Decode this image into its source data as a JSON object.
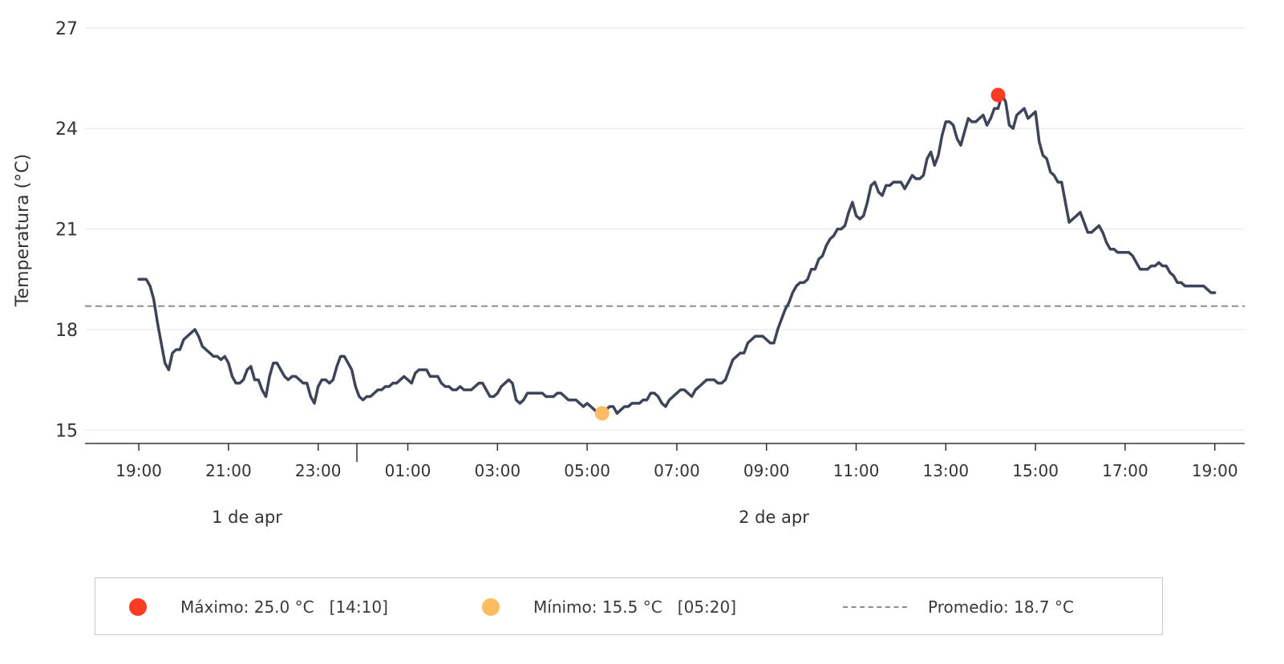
{
  "chart_data": {
    "type": "line",
    "title": "",
    "xlabel": "",
    "ylabel": "Temperatura (°C)",
    "ylim": [
      14.6,
      27.5
    ],
    "yticks": [
      15,
      18,
      21,
      24,
      27
    ],
    "xlim": [
      "2024-04-01T17:48",
      "2024-04-02T19:40"
    ],
    "xticks": [
      "19:00",
      "21:00",
      "23:00",
      "01:00",
      "03:00",
      "05:00",
      "07:00",
      "09:00",
      "11:00",
      "13:00",
      "15:00",
      "17:00",
      "19:00"
    ],
    "day_labels": [
      "1 de apr",
      "2 de apr"
    ],
    "grid": "horizontal",
    "colors": {
      "line": "#3f4458",
      "max": "#ff3b24",
      "min": "#fbbd5f",
      "mean": "#8e8e8e",
      "grid": "#eeeeee"
    },
    "x": [
      "2024-04-01T19:00",
      "2024-04-01T19:05",
      "2024-04-01T19:10",
      "2024-04-01T19:15",
      "2024-04-01T19:20",
      "2024-04-01T19:25",
      "2024-04-01T19:30",
      "2024-04-01T19:35",
      "2024-04-01T19:40",
      "2024-04-01T19:45",
      "2024-04-01T19:50",
      "2024-04-01T19:55",
      "2024-04-01T20:00",
      "2024-04-01T20:05",
      "2024-04-01T20:10",
      "2024-04-01T20:15",
      "2024-04-01T20:20",
      "2024-04-01T20:25",
      "2024-04-01T20:30",
      "2024-04-01T20:35",
      "2024-04-01T20:40",
      "2024-04-01T20:45",
      "2024-04-01T20:50",
      "2024-04-01T20:55",
      "2024-04-01T21:00",
      "2024-04-01T21:05",
      "2024-04-01T21:10",
      "2024-04-01T21:15",
      "2024-04-01T21:20",
      "2024-04-01T21:25",
      "2024-04-01T21:30",
      "2024-04-01T21:35",
      "2024-04-01T21:40",
      "2024-04-01T21:45",
      "2024-04-01T21:50",
      "2024-04-01T21:55",
      "2024-04-01T22:00",
      "2024-04-01T22:05",
      "2024-04-01T22:10",
      "2024-04-01T22:15",
      "2024-04-01T22:20",
      "2024-04-01T22:25",
      "2024-04-01T22:30",
      "2024-04-01T22:35",
      "2024-04-01T22:40",
      "2024-04-01T22:45",
      "2024-04-01T22:50",
      "2024-04-01T22:55",
      "2024-04-01T23:00",
      "2024-04-01T23:05",
      "2024-04-01T23:10",
      "2024-04-01T23:15",
      "2024-04-01T23:20",
      "2024-04-01T23:25",
      "2024-04-01T23:30",
      "2024-04-01T23:35",
      "2024-04-01T23:40",
      "2024-04-01T23:45",
      "2024-04-01T23:50",
      "2024-04-01T23:55",
      "2024-04-02T00:00",
      "2024-04-02T00:05",
      "2024-04-02T00:10",
      "2024-04-02T00:15",
      "2024-04-02T00:20",
      "2024-04-02T00:25",
      "2024-04-02T00:30",
      "2024-04-02T00:35",
      "2024-04-02T00:40",
      "2024-04-02T00:45",
      "2024-04-02T00:50",
      "2024-04-02T00:55",
      "2024-04-02T01:00",
      "2024-04-02T01:05",
      "2024-04-02T01:10",
      "2024-04-02T01:15",
      "2024-04-02T01:20",
      "2024-04-02T01:25",
      "2024-04-02T01:30",
      "2024-04-02T01:35",
      "2024-04-02T01:40",
      "2024-04-02T01:45",
      "2024-04-02T01:50",
      "2024-04-02T01:55",
      "2024-04-02T02:00",
      "2024-04-02T02:05",
      "2024-04-02T02:10",
      "2024-04-02T02:15",
      "2024-04-02T02:20",
      "2024-04-02T02:25",
      "2024-04-02T02:30",
      "2024-04-02T02:35",
      "2024-04-02T02:40",
      "2024-04-02T02:45",
      "2024-04-02T02:50",
      "2024-04-02T02:55",
      "2024-04-02T03:00",
      "2024-04-02T03:05",
      "2024-04-02T03:10",
      "2024-04-02T03:15",
      "2024-04-02T03:20",
      "2024-04-02T03:25",
      "2024-04-02T03:30",
      "2024-04-02T03:35",
      "2024-04-02T03:40",
      "2024-04-02T03:45",
      "2024-04-02T03:50",
      "2024-04-02T03:55",
      "2024-04-02T04:00",
      "2024-04-02T04:05",
      "2024-04-02T04:10",
      "2024-04-02T04:15",
      "2024-04-02T04:20",
      "2024-04-02T04:25",
      "2024-04-02T04:30",
      "2024-04-02T04:35",
      "2024-04-02T04:40",
      "2024-04-02T04:45",
      "2024-04-02T04:50",
      "2024-04-02T04:55",
      "2024-04-02T05:00",
      "2024-04-02T05:05",
      "2024-04-02T05:10",
      "2024-04-02T05:15",
      "2024-04-02T05:20",
      "2024-04-02T05:25",
      "2024-04-02T05:30",
      "2024-04-02T05:35",
      "2024-04-02T05:40",
      "2024-04-02T05:45",
      "2024-04-02T05:50",
      "2024-04-02T05:55",
      "2024-04-02T06:00",
      "2024-04-02T06:05",
      "2024-04-02T06:10",
      "2024-04-02T06:15",
      "2024-04-02T06:20",
      "2024-04-02T06:25",
      "2024-04-02T06:30",
      "2024-04-02T06:35",
      "2024-04-02T06:40",
      "2024-04-02T06:45",
      "2024-04-02T06:50",
      "2024-04-02T06:55",
      "2024-04-02T07:00",
      "2024-04-02T07:05",
      "2024-04-02T07:10",
      "2024-04-02T07:15",
      "2024-04-02T07:20",
      "2024-04-02T07:25",
      "2024-04-02T07:30",
      "2024-04-02T07:35",
      "2024-04-02T07:40",
      "2024-04-02T07:45",
      "2024-04-02T07:50",
      "2024-04-02T07:55",
      "2024-04-02T08:00",
      "2024-04-02T08:05",
      "2024-04-02T08:10",
      "2024-04-02T08:15",
      "2024-04-02T08:20",
      "2024-04-02T08:25",
      "2024-04-02T08:30",
      "2024-04-02T08:35",
      "2024-04-02T08:40",
      "2024-04-02T08:45",
      "2024-04-02T08:50",
      "2024-04-02T08:55",
      "2024-04-02T09:00",
      "2024-04-02T09:05",
      "2024-04-02T09:10",
      "2024-04-02T09:15",
      "2024-04-02T09:20",
      "2024-04-02T09:25",
      "2024-04-02T09:30",
      "2024-04-02T09:35",
      "2024-04-02T09:40",
      "2024-04-02T09:45",
      "2024-04-02T09:50",
      "2024-04-02T09:55",
      "2024-04-02T10:00",
      "2024-04-02T10:05",
      "2024-04-02T10:10",
      "2024-04-02T10:15",
      "2024-04-02T10:20",
      "2024-04-02T10:25",
      "2024-04-02T10:30",
      "2024-04-02T10:35",
      "2024-04-02T10:40",
      "2024-04-02T10:45",
      "2024-04-02T10:50",
      "2024-04-02T10:55",
      "2024-04-02T11:00",
      "2024-04-02T11:05",
      "2024-04-02T11:10",
      "2024-04-02T11:15",
      "2024-04-02T11:20",
      "2024-04-02T11:25",
      "2024-04-02T11:30",
      "2024-04-02T11:35",
      "2024-04-02T11:40",
      "2024-04-02T11:45",
      "2024-04-02T11:50",
      "2024-04-02T11:55",
      "2024-04-02T12:00",
      "2024-04-02T12:05",
      "2024-04-02T12:10",
      "2024-04-02T12:15",
      "2024-04-02T12:20",
      "2024-04-02T12:25",
      "2024-04-02T12:30",
      "2024-04-02T12:35",
      "2024-04-02T12:40",
      "2024-04-02T12:45",
      "2024-04-02T12:50",
      "2024-04-02T12:55",
      "2024-04-02T13:00",
      "2024-04-02T13:05",
      "2024-04-02T13:10",
      "2024-04-02T13:15",
      "2024-04-02T13:20",
      "2024-04-02T13:25",
      "2024-04-02T13:30",
      "2024-04-02T13:35",
      "2024-04-02T13:40",
      "2024-04-02T13:45",
      "2024-04-02T13:50",
      "2024-04-02T13:55",
      "2024-04-02T14:00",
      "2024-04-02T14:05",
      "2024-04-02T14:10",
      "2024-04-02T14:15",
      "2024-04-02T14:20",
      "2024-04-02T14:25",
      "2024-04-02T14:30",
      "2024-04-02T14:35",
      "2024-04-02T14:40",
      "2024-04-02T14:45",
      "2024-04-02T14:50",
      "2024-04-02T14:55",
      "2024-04-02T15:00",
      "2024-04-02T15:05",
      "2024-04-02T15:10",
      "2024-04-02T15:15",
      "2024-04-02T15:20",
      "2024-04-02T15:25",
      "2024-04-02T15:30",
      "2024-04-02T15:35",
      "2024-04-02T15:40",
      "2024-04-02T15:45",
      "2024-04-02T15:50",
      "2024-04-02T15:55",
      "2024-04-02T16:00",
      "2024-04-02T16:05",
      "2024-04-02T16:10",
      "2024-04-02T16:15",
      "2024-04-02T16:20",
      "2024-04-02T16:25",
      "2024-04-02T16:30",
      "2024-04-02T16:35",
      "2024-04-02T16:40",
      "2024-04-02T16:45",
      "2024-04-02T16:50",
      "2024-04-02T16:55",
      "2024-04-02T17:00",
      "2024-04-02T17:05",
      "2024-04-02T17:10",
      "2024-04-02T17:15",
      "2024-04-02T17:20",
      "2024-04-02T17:25",
      "2024-04-02T17:30",
      "2024-04-02T17:35",
      "2024-04-02T17:40",
      "2024-04-02T17:45",
      "2024-04-02T17:50",
      "2024-04-02T17:55",
      "2024-04-02T18:00",
      "2024-04-02T18:05",
      "2024-04-02T18:10",
      "2024-04-02T18:15",
      "2024-04-02T18:20",
      "2024-04-02T18:25",
      "2024-04-02T18:30",
      "2024-04-02T18:35",
      "2024-04-02T18:40",
      "2024-04-02T18:45",
      "2024-04-02T18:50",
      "2024-04-02T18:55",
      "2024-04-02T19:00"
    ],
    "series": [
      {
        "values": [
          19.5,
          19.5,
          19.5,
          19.3,
          18.9,
          18.2,
          17.6,
          17.0,
          16.8,
          17.3,
          17.4,
          17.4,
          17.7,
          17.8,
          17.9,
          18.0,
          17.8,
          17.5,
          17.4,
          17.3,
          17.2,
          17.2,
          17.1,
          17.2,
          17.0,
          16.6,
          16.4,
          16.4,
          16.5,
          16.8,
          16.9,
          16.5,
          16.5,
          16.2,
          16.0,
          16.6,
          17.0,
          17.0,
          16.8,
          16.6,
          16.5,
          16.6,
          16.6,
          16.5,
          16.4,
          16.4,
          16.0,
          15.8,
          16.3,
          16.5,
          16.5,
          16.4,
          16.5,
          16.9,
          17.2,
          17.2,
          17.0,
          16.8,
          16.3,
          16.0,
          15.9,
          16.0,
          16.0,
          16.1,
          16.2,
          16.2,
          16.3,
          16.3,
          16.4,
          16.4,
          16.5,
          16.6,
          16.5,
          16.4,
          16.7,
          16.8,
          16.8,
          16.8,
          16.6,
          16.6,
          16.6,
          16.4,
          16.3,
          16.3,
          16.2,
          16.2,
          16.3,
          16.2,
          16.2,
          16.2,
          16.3,
          16.4,
          16.4,
          16.2,
          16.0,
          16.0,
          16.1,
          16.3,
          16.4,
          16.5,
          16.4,
          15.9,
          15.8,
          15.9,
          16.1,
          16.1,
          16.1,
          16.1,
          16.1,
          16.0,
          16.0,
          16.0,
          16.1,
          16.1,
          16.0,
          15.9,
          15.9,
          15.9,
          15.8,
          15.7,
          15.8,
          15.7,
          15.6,
          15.5,
          15.5,
          15.6,
          15.7,
          15.7,
          15.5,
          15.6,
          15.7,
          15.7,
          15.8,
          15.8,
          15.8,
          15.9,
          15.9,
          16.1,
          16.1,
          16.0,
          15.8,
          15.7,
          15.9,
          16.0,
          16.1,
          16.2,
          16.2,
          16.1,
          16.0,
          16.2,
          16.3,
          16.4,
          16.5,
          16.5,
          16.5,
          16.4,
          16.4,
          16.5,
          16.8,
          17.1,
          17.2,
          17.3,
          17.3,
          17.6,
          17.7,
          17.8,
          17.8,
          17.8,
          17.7,
          17.6,
          17.6,
          18.0,
          18.3,
          18.6,
          18.8,
          19.1,
          19.3,
          19.4,
          19.4,
          19.5,
          19.8,
          19.8,
          20.1,
          20.2,
          20.5,
          20.7,
          20.8,
          21.0,
          21.0,
          21.1,
          21.5,
          21.8,
          21.4,
          21.3,
          21.4,
          21.8,
          22.3,
          22.4,
          22.1,
          22.0,
          22.3,
          22.3,
          22.4,
          22.4,
          22.4,
          22.2,
          22.4,
          22.6,
          22.5,
          22.5,
          22.6,
          23.1,
          23.3,
          22.9,
          23.2,
          23.8,
          24.2,
          24.2,
          24.1,
          23.7,
          23.5,
          23.9,
          24.3,
          24.2,
          24.2,
          24.3,
          24.4,
          24.1,
          24.3,
          24.6,
          24.6,
          25.0,
          24.8,
          24.1,
          24.0,
          24.4,
          24.5,
          24.6,
          24.3,
          24.4,
          24.5,
          23.6,
          23.2,
          23.1,
          22.7,
          22.6,
          22.4,
          22.4,
          21.8,
          21.2,
          21.3,
          21.4,
          21.5,
          21.2,
          20.9,
          20.9,
          21.0,
          21.1,
          20.9,
          20.6,
          20.4,
          20.4,
          20.3,
          20.3,
          20.3,
          20.3,
          20.2,
          20.0,
          19.8,
          19.8,
          19.8,
          19.9,
          19.9,
          20.0,
          19.9,
          19.9,
          19.7,
          19.6,
          19.4,
          19.4,
          19.3,
          19.3,
          19.3,
          19.3,
          19.3,
          19.3,
          19.2,
          19.1,
          19.1
        ]
      }
    ],
    "max_point": {
      "x": "2024-04-02T14:10",
      "y": 25.0,
      "legend": "Máximo: 25.0 °C   [14:10]"
    },
    "min_point": {
      "x": "2024-04-02T05:20",
      "y": 15.5,
      "legend": "Mínimo: 15.5 °C   [05:20]"
    },
    "mean_line": {
      "y": 18.7,
      "legend": "Promedio: 18.7 °C"
    },
    "legend_position": "bottom"
  }
}
